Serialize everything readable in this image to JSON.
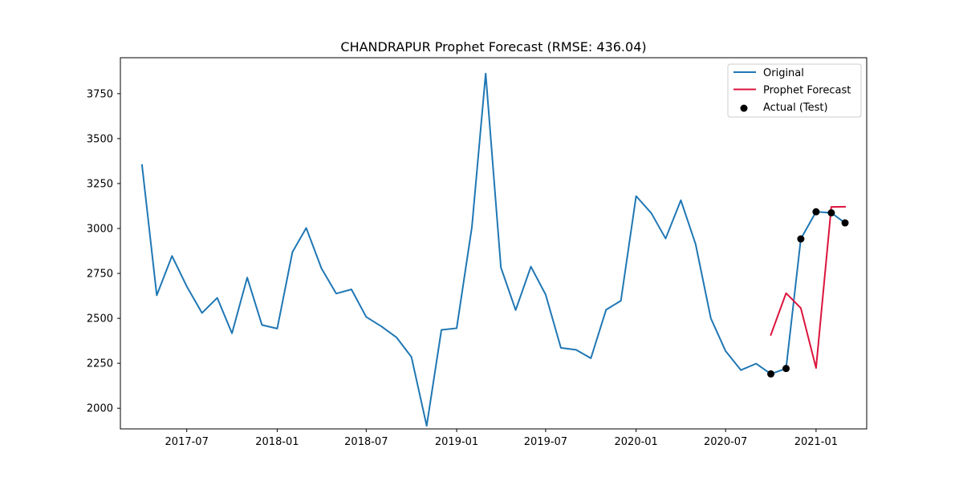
{
  "chart_data": {
    "type": "line",
    "title": "CHANDRAPUR Prophet Forecast (RMSE: 436.04)",
    "xlabel": "",
    "ylabel": "",
    "x_ticks": [
      "2017-07",
      "2018-01",
      "2018-07",
      "2019-01",
      "2019-07",
      "2020-01",
      "2020-07",
      "2021-01"
    ],
    "y_ticks": [
      2000,
      2250,
      2500,
      2750,
      3000,
      3250,
      3500,
      3750
    ],
    "xlim": [
      "2017-02-16",
      "2021-04-14"
    ],
    "ylim": [
      1885,
      3950
    ],
    "legend_position": "top-right",
    "grid": false,
    "series": [
      {
        "name": "Original",
        "type": "line",
        "color": "#1f77b4",
        "points": [
          [
            "2017-04-01",
            3353
          ],
          [
            "2017-05-01",
            2628
          ],
          [
            "2017-06-01",
            2847
          ],
          [
            "2017-07-01",
            2678
          ],
          [
            "2017-08-01",
            2530
          ],
          [
            "2017-09-01",
            2614
          ],
          [
            "2017-10-01",
            2417
          ],
          [
            "2017-11-01",
            2727
          ],
          [
            "2017-12-01",
            2463
          ],
          [
            "2018-01-01",
            2443
          ],
          [
            "2018-02-01",
            2869
          ],
          [
            "2018-03-01",
            3003
          ],
          [
            "2018-04-01",
            2778
          ],
          [
            "2018-05-01",
            2638
          ],
          [
            "2018-06-01",
            2661
          ],
          [
            "2018-07-01",
            2508
          ],
          [
            "2018-08-01",
            2455
          ],
          [
            "2018-09-01",
            2393
          ],
          [
            "2018-10-01",
            2285
          ],
          [
            "2018-11-01",
            1902
          ],
          [
            "2018-12-01",
            2436
          ],
          [
            "2019-01-01",
            2445
          ],
          [
            "2019-02-01",
            3008
          ],
          [
            "2019-03-01",
            3862
          ],
          [
            "2019-04-01",
            2783
          ],
          [
            "2019-05-01",
            2546
          ],
          [
            "2019-06-01",
            2788
          ],
          [
            "2019-07-01",
            2632
          ],
          [
            "2019-08-01",
            2336
          ],
          [
            "2019-09-01",
            2325
          ],
          [
            "2019-10-01",
            2278
          ],
          [
            "2019-11-01",
            2548
          ],
          [
            "2019-12-01",
            2598
          ],
          [
            "2020-01-01",
            3180
          ],
          [
            "2020-02-01",
            3085
          ],
          [
            "2020-03-01",
            2944
          ],
          [
            "2020-04-01",
            3157
          ],
          [
            "2020-05-01",
            2913
          ],
          [
            "2020-06-01",
            2500
          ],
          [
            "2020-07-01",
            2318
          ],
          [
            "2020-08-01",
            2212
          ],
          [
            "2020-09-01",
            2248
          ],
          [
            "2020-10-01",
            2191
          ],
          [
            "2020-11-01",
            2221
          ],
          [
            "2020-12-01",
            2942
          ],
          [
            "2021-01-01",
            3093
          ],
          [
            "2021-02-01",
            3087
          ],
          [
            "2021-03-01",
            3031
          ]
        ]
      },
      {
        "name": "Prophet Forecast",
        "type": "line",
        "color": "#dc143c",
        "points": [
          [
            "2020-10-01",
            2408
          ],
          [
            "2020-11-01",
            2640
          ],
          [
            "2020-12-01",
            2557
          ],
          [
            "2021-01-01",
            2224
          ],
          [
            "2021-02-01",
            3120
          ],
          [
            "2021-03-01",
            3121
          ]
        ]
      },
      {
        "name": "Actual (Test)",
        "type": "scatter",
        "color": "#000000",
        "points": [
          [
            "2020-10-01",
            2191
          ],
          [
            "2020-11-01",
            2221
          ],
          [
            "2020-12-01",
            2942
          ],
          [
            "2021-01-01",
            3093
          ],
          [
            "2021-02-01",
            3087
          ],
          [
            "2021-03-01",
            3031
          ]
        ]
      }
    ]
  }
}
